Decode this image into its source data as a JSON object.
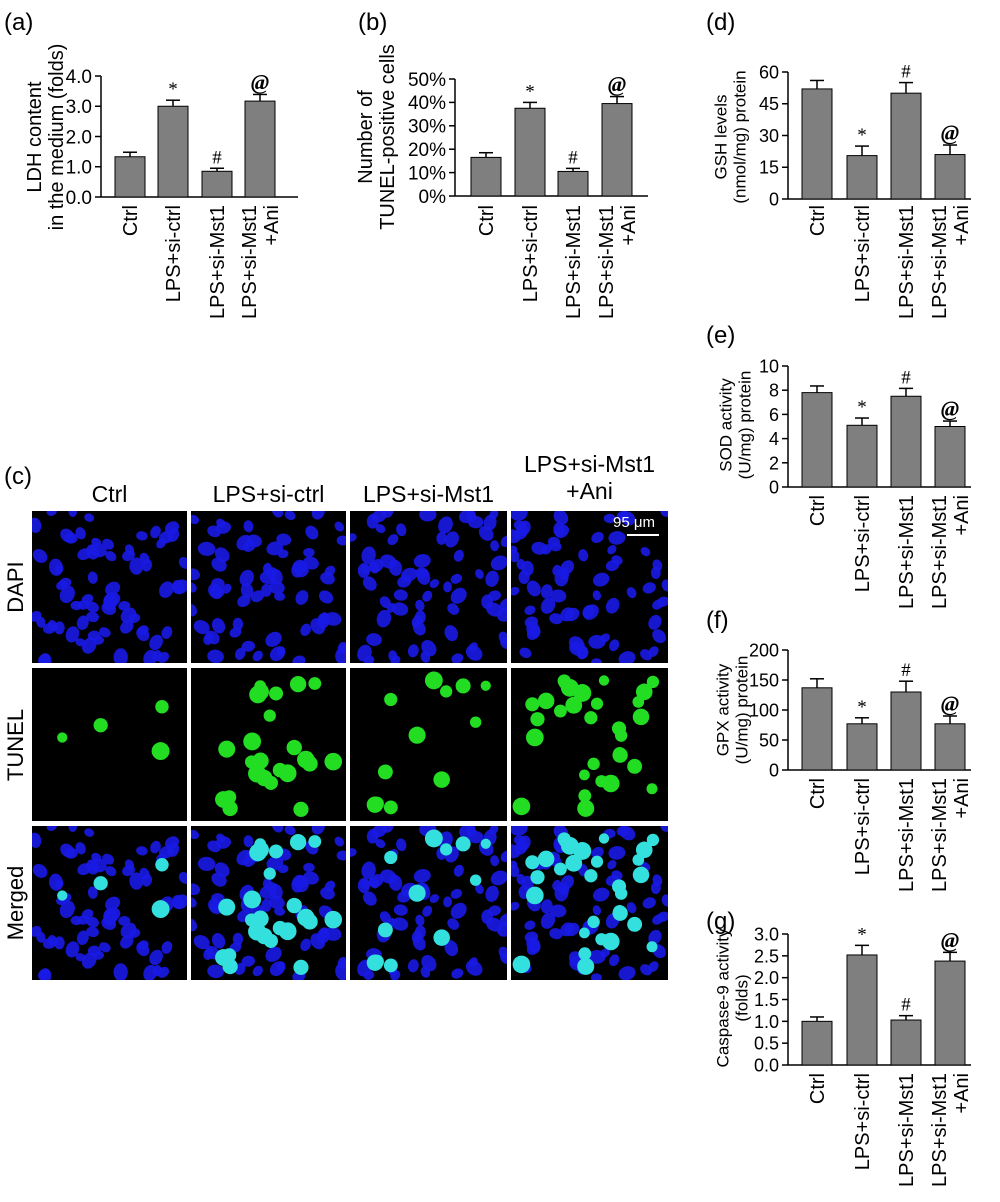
{
  "chart_data": [
    {
      "panel": "(a)",
      "type": "bar",
      "categories": [
        "Ctrl",
        "LPS+si-ctrl",
        "LPS+si-Mst1",
        "LPS+si-Mst1\n+Ani"
      ],
      "values": [
        1.33,
        3.0,
        0.85,
        3.17
      ],
      "errors": [
        0.15,
        0.2,
        0.1,
        0.22
      ],
      "significance": [
        "",
        "*",
        "#",
        "@"
      ],
      "ylabel": "LDH content\nin the medium (folds)",
      "yticks": [
        "4.0",
        "3.0",
        "2.0",
        "1.0",
        "0.0"
      ],
      "ylim": [
        0,
        4
      ]
    },
    {
      "panel": "(b)",
      "type": "bar",
      "categories": [
        "Ctrl",
        "LPS+si-ctrl",
        "LPS+si-Mst1",
        "LPS+si-Mst1\n+Ani"
      ],
      "values": [
        16.5,
        37.5,
        10.5,
        39.5
      ],
      "errors": [
        2.0,
        2.5,
        1.3,
        3.0
      ],
      "significance": [
        "",
        "*",
        "#",
        "@"
      ],
      "ylabel": "Number of\nTUNEL-positive cells",
      "yticks": [
        "50%",
        "40%",
        "30%",
        "20%",
        "10%",
        "0%"
      ],
      "ylim": [
        0,
        50
      ]
    },
    {
      "panel": "(d)",
      "type": "bar",
      "categories": [
        "Ctrl",
        "LPS+si-ctrl",
        "LPS+si-Mst1",
        "LPS+si-Mst1\n+Ani"
      ],
      "values": [
        52,
        20.5,
        50,
        21
      ],
      "errors": [
        4,
        4.5,
        5,
        4.5
      ],
      "significance": [
        "",
        "*",
        "#",
        "@"
      ],
      "ylabel": "GSH levels\n(nmol/mg) protein",
      "yticks": [
        "60",
        "45",
        "30",
        "15",
        "0"
      ],
      "ylim": [
        0,
        60
      ]
    },
    {
      "panel": "(e)",
      "type": "bar",
      "categories": [
        "Ctrl",
        "LPS+si-ctrl",
        "LPS+si-Mst1",
        "LPS+si-Mst1\n+Ani"
      ],
      "values": [
        7.8,
        5.1,
        7.5,
        5.0
      ],
      "errors": [
        0.55,
        0.6,
        0.65,
        0.45
      ],
      "significance": [
        "",
        "*",
        "#",
        "@"
      ],
      "ylabel": "SOD activity\n(U/mg) protein",
      "yticks": [
        "10",
        "8",
        "6",
        "4",
        "2",
        "0"
      ],
      "ylim": [
        0,
        10
      ]
    },
    {
      "panel": "(f)",
      "type": "bar",
      "categories": [
        "Ctrl",
        "LPS+si-ctrl",
        "LPS+si-Mst1",
        "LPS+si-Mst1\n+Ani"
      ],
      "values": [
        137,
        77,
        130,
        77
      ],
      "errors": [
        15,
        10,
        18,
        13
      ],
      "significance": [
        "",
        "*",
        "#",
        "@"
      ],
      "ylabel": "GPX activity\n(U/mg) protein",
      "yticks": [
        "200",
        "150",
        "100",
        "50",
        "0"
      ],
      "ylim": [
        0,
        200
      ]
    },
    {
      "panel": "(g)",
      "type": "bar",
      "categories": [
        "Ctrl",
        "LPS+si-ctrl",
        "LPS+si-Mst1",
        "LPS+si-Mst1\n+Ani"
      ],
      "values": [
        1.0,
        2.52,
        1.03,
        2.38
      ],
      "errors": [
        0.1,
        0.22,
        0.1,
        0.2
      ],
      "significance": [
        "",
        "*",
        "#",
        "@"
      ],
      "ylabel": "Caspase-9 activity\n(folds)",
      "yticks": [
        "3.0",
        "2.5",
        "2.0",
        "1.5",
        "1.0",
        "0.5",
        "0.0"
      ],
      "ylim": [
        0,
        3
      ]
    }
  ],
  "micrograph": {
    "panel": "(c)",
    "columns": [
      "Ctrl",
      "LPS+si-ctrl",
      "LPS+si-Mst1",
      "LPS+si-Mst1\n+Ani"
    ],
    "rows": [
      "DAPI",
      "TUNEL",
      "Merged"
    ],
    "scale_bar": "95 μm",
    "green_cells": [
      4,
      24,
      12,
      30
    ],
    "colors": {
      "dapi": "#1a1ae6",
      "tunel": "#22dd22",
      "merged": "#33e0dd",
      "background": "#000000"
    }
  },
  "colors": {
    "bar_fill": "#7f7f7f",
    "bar_stroke": "#000000"
  }
}
